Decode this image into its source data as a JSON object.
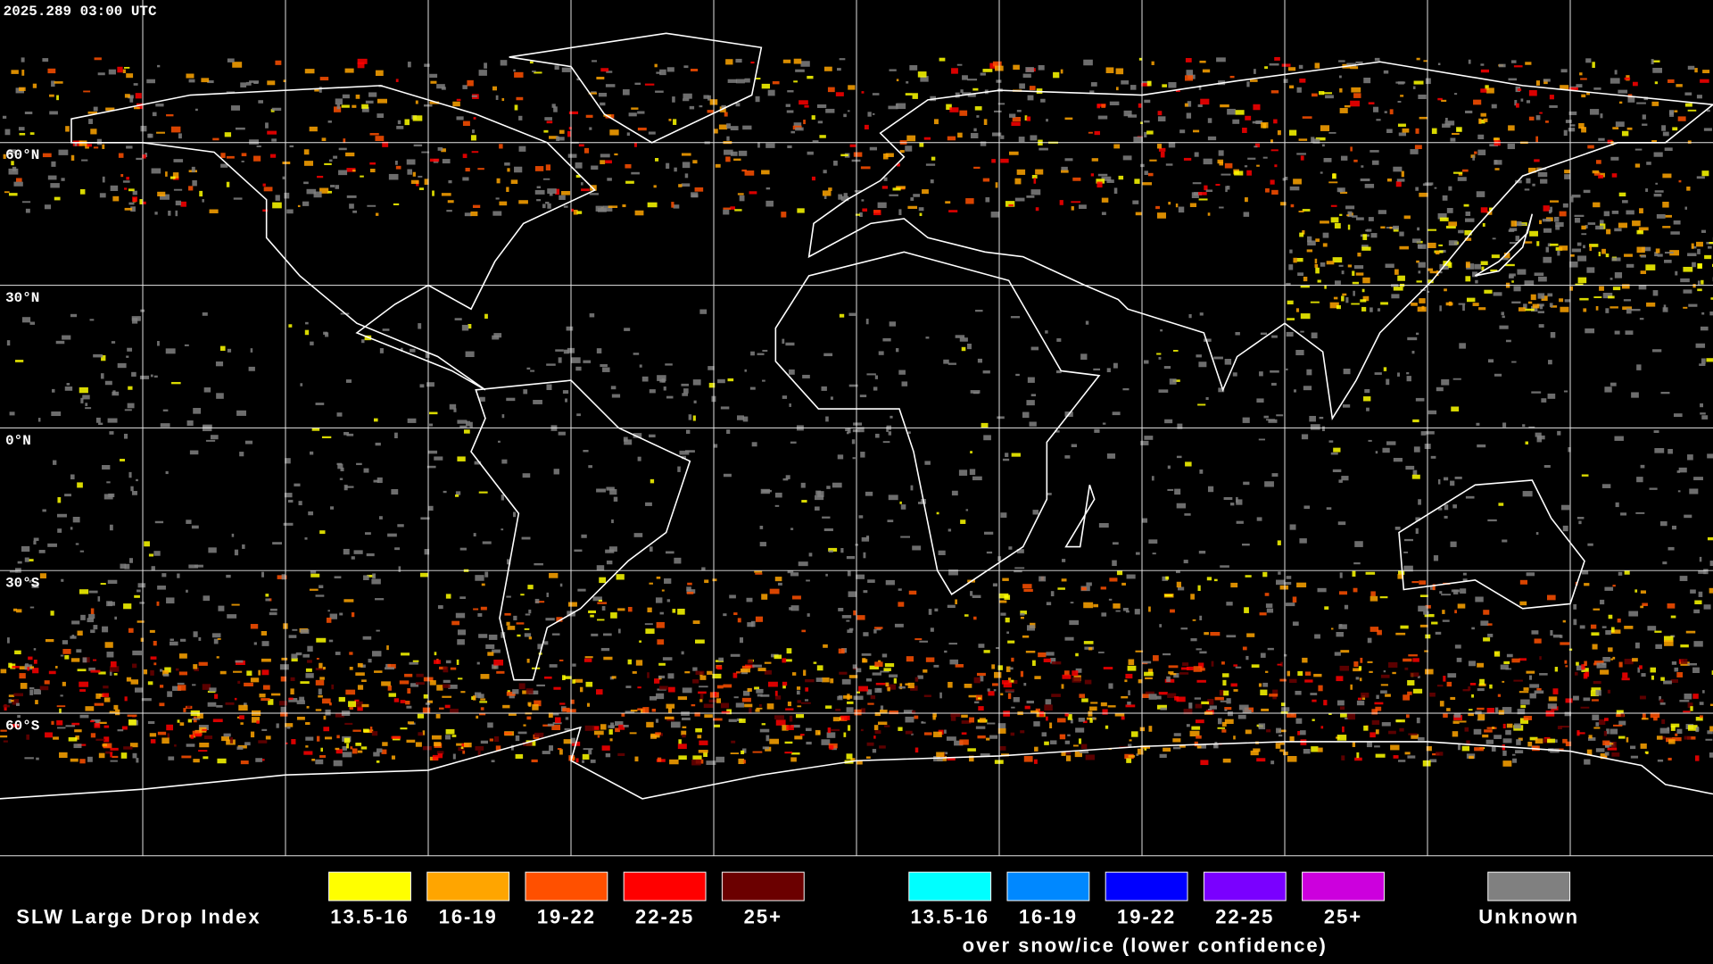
{
  "header": {
    "timestamp": "2025.289 03:00 UTC"
  },
  "map": {
    "latitude_labels": [
      "60°N",
      "30°N",
      "0°N",
      "30°S",
      "60°S"
    ]
  },
  "legend": {
    "title": "SLW Large Drop Index",
    "groups": [
      {
        "items": [
          {
            "label": "13.5-16",
            "color": "#ffff00"
          },
          {
            "label": "16-19",
            "color": "#ffa500"
          },
          {
            "label": "19-22",
            "color": "#ff5000"
          },
          {
            "label": "22-25",
            "color": "#ff0000"
          },
          {
            "label": "25+",
            "color": "#6b0000"
          }
        ]
      },
      {
        "items": [
          {
            "label": "13.5-16",
            "color": "#00ffff"
          },
          {
            "label": "16-19",
            "color": "#0088ff"
          },
          {
            "label": "19-22",
            "color": "#0000ff"
          },
          {
            "label": "22-25",
            "color": "#7a00ff"
          },
          {
            "label": "25+",
            "color": "#cc00dd"
          }
        ],
        "caption": "over snow/ice (lower confidence)"
      },
      {
        "items": [
          {
            "label": "Unknown",
            "color": "#808080"
          }
        ]
      }
    ]
  }
}
